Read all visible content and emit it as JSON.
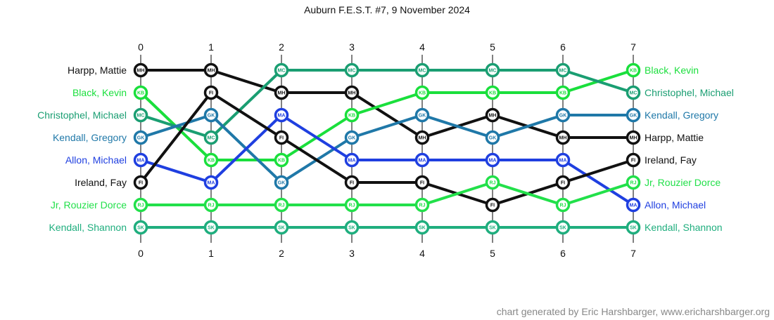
{
  "chart_data": {
    "type": "bump",
    "title": "Auburn F.E.S.T. #7, 9 November 2024",
    "rounds": [
      0,
      1,
      2,
      3,
      4,
      5,
      6,
      7
    ],
    "series": [
      {
        "name": "Harpp, Mattie",
        "initials": "MH",
        "color": "#111111",
        "ranks": [
          1,
          1,
          2,
          2,
          4,
          3,
          4,
          4
        ]
      },
      {
        "name": "Black, Kevin",
        "initials": "KB",
        "color": "#1adf3c",
        "ranks": [
          2,
          5,
          5,
          3,
          2,
          2,
          2,
          1
        ]
      },
      {
        "name": "Christophel, Michael",
        "initials": "MC",
        "color": "#1a9e72",
        "ranks": [
          3,
          4,
          1,
          1,
          1,
          1,
          1,
          2
        ]
      },
      {
        "name": "Kendall, Gregory",
        "initials": "GK",
        "color": "#1f78a8",
        "ranks": [
          4,
          3,
          6,
          4,
          3,
          4,
          3,
          3
        ]
      },
      {
        "name": "Allon, Michael",
        "initials": "MA",
        "color": "#1f3fe0",
        "ranks": [
          5,
          6,
          3,
          5,
          5,
          5,
          5,
          7
        ]
      },
      {
        "name": "Ireland, Fay",
        "initials": "FI",
        "color": "#111111",
        "ranks": [
          6,
          2,
          4,
          6,
          6,
          7,
          6,
          5
        ]
      },
      {
        "name": "Jr, Rouzier Dorce",
        "initials": "RJ",
        "color": "#22e04a",
        "ranks": [
          7,
          7,
          7,
          7,
          7,
          6,
          7,
          6
        ]
      },
      {
        "name": "Kendall, Shannon",
        "initials": "SK",
        "color": "#1fae7e",
        "ranks": [
          8,
          8,
          8,
          8,
          8,
          8,
          8,
          8
        ]
      }
    ]
  },
  "credit": "chart generated by Eric Harshbarger, www.ericharshbarger.org"
}
